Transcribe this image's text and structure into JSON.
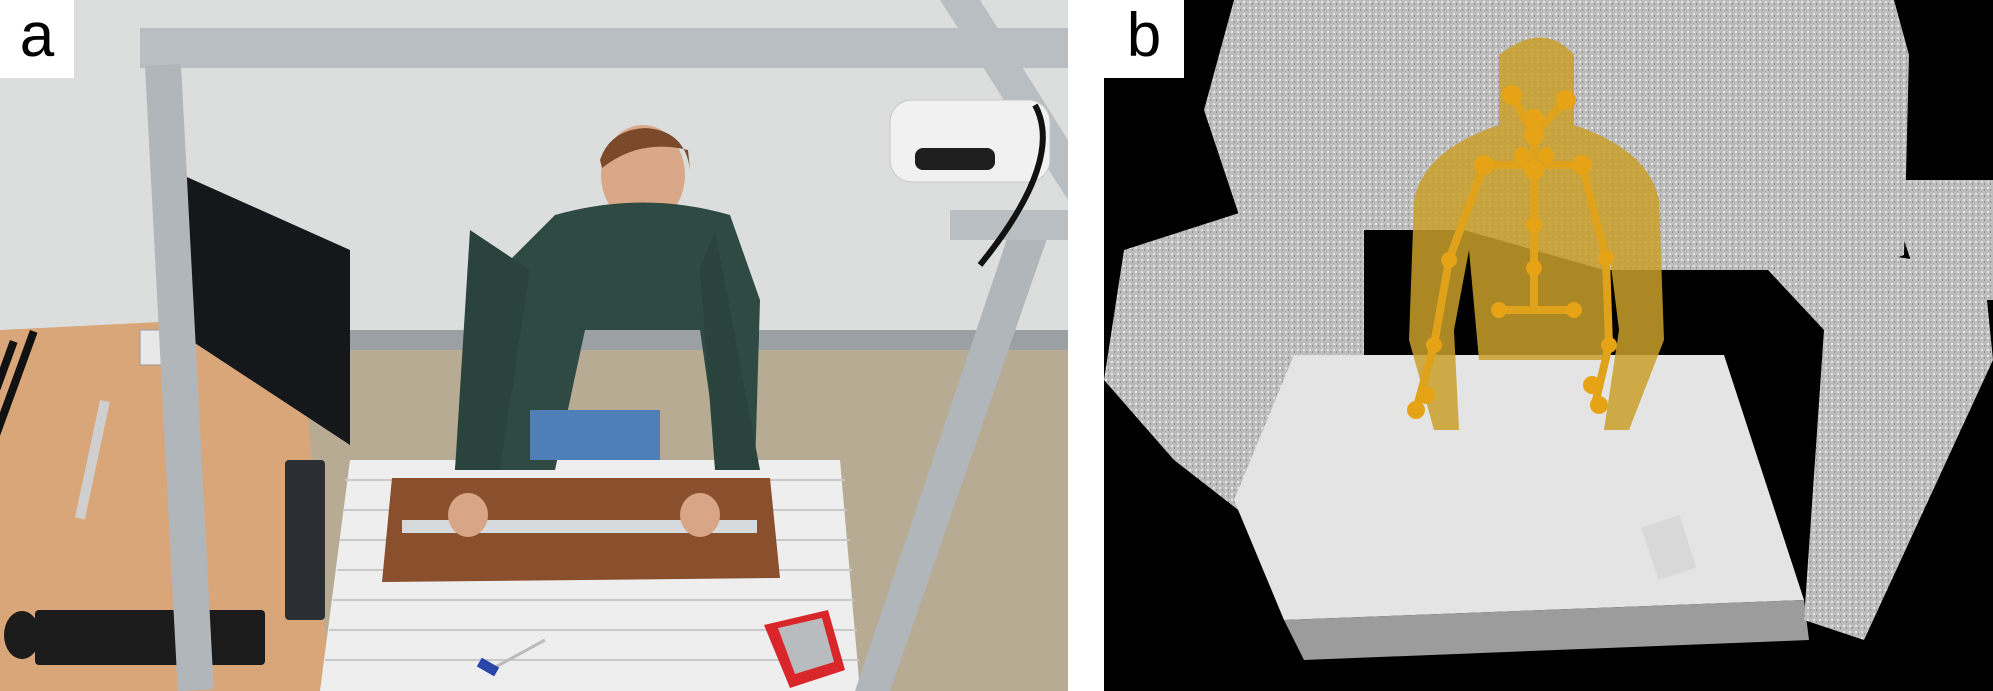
{
  "panels": [
    {
      "label": "a",
      "description_icon": "photo-workstation"
    },
    {
      "label": "b",
      "description_icon": "point-cloud-skeleton"
    }
  ],
  "colors": {
    "wall": "#dcdede",
    "frame": "#b9bec2",
    "table_wood": "#d9a679",
    "board": "#8a4f2c",
    "sweater": "#2f4a43",
    "skeleton": "#e0a21a",
    "cloud": "#bdbdbd",
    "box_red": "#d9262b"
  }
}
